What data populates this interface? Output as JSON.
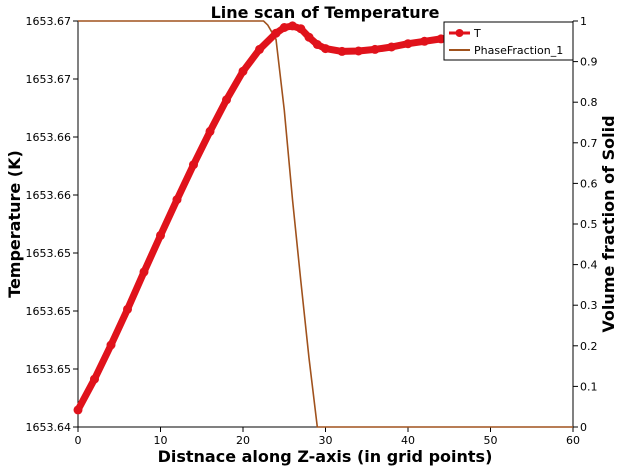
{
  "chart_data": {
    "type": "line",
    "title": "Line scan of Temperature",
    "xlabel": "Distnace along Z-axis (in grid points)",
    "ylabel_left": "Temperature (K)",
    "ylabel_right": "Volume fraction of Solid",
    "xlim": [
      0,
      60
    ],
    "x_ticks": [
      "0",
      "10",
      "20",
      "30",
      "40",
      "50",
      "60"
    ],
    "y_left_ticks": [
      "1653.64",
      "1653.65",
      "1653.65",
      "1653.65",
      "1653.66",
      "1653.66",
      "1653.67",
      "1653.67"
    ],
    "y_right_ticks": [
      "0",
      "0.1",
      "0.2",
      "0.3",
      "0.4",
      "0.5",
      "0.6",
      "0.7",
      "0.8",
      "0.9",
      "1"
    ],
    "ylim_left_relative": [
      0,
      1
    ],
    "ylim_right": [
      0,
      1
    ],
    "legend_position": "top-right",
    "series": [
      {
        "name": "T",
        "axis": "left",
        "color": "#e0121b",
        "marker": "circle",
        "x": [
          0,
          2,
          4,
          6,
          8,
          10,
          12,
          14,
          16,
          18,
          20,
          22,
          24,
          25,
          26,
          27,
          28,
          29,
          30,
          32,
          34,
          36,
          38,
          40,
          42,
          44,
          46
        ],
        "y_relative": [
          0.042,
          0.118,
          0.202,
          0.29,
          0.382,
          0.472,
          0.56,
          0.646,
          0.728,
          0.806,
          0.876,
          0.93,
          0.97,
          0.984,
          0.988,
          0.981,
          0.96,
          0.942,
          0.932,
          0.925,
          0.926,
          0.93,
          0.936,
          0.944,
          0.95,
          0.956,
          0.96
        ]
      },
      {
        "name": "PhaseFraction_1",
        "axis": "right",
        "color": "#a0521d",
        "x": [
          0,
          10,
          20,
          22.5,
          23,
          24,
          25,
          26,
          27,
          28,
          29,
          30,
          40,
          50,
          60
        ],
        "y": [
          1,
          1,
          1,
          1,
          0.99,
          0.955,
          0.78,
          0.56,
          0.36,
          0.17,
          0.0,
          0.0,
          0.0,
          0.0,
          0.0
        ]
      }
    ]
  }
}
